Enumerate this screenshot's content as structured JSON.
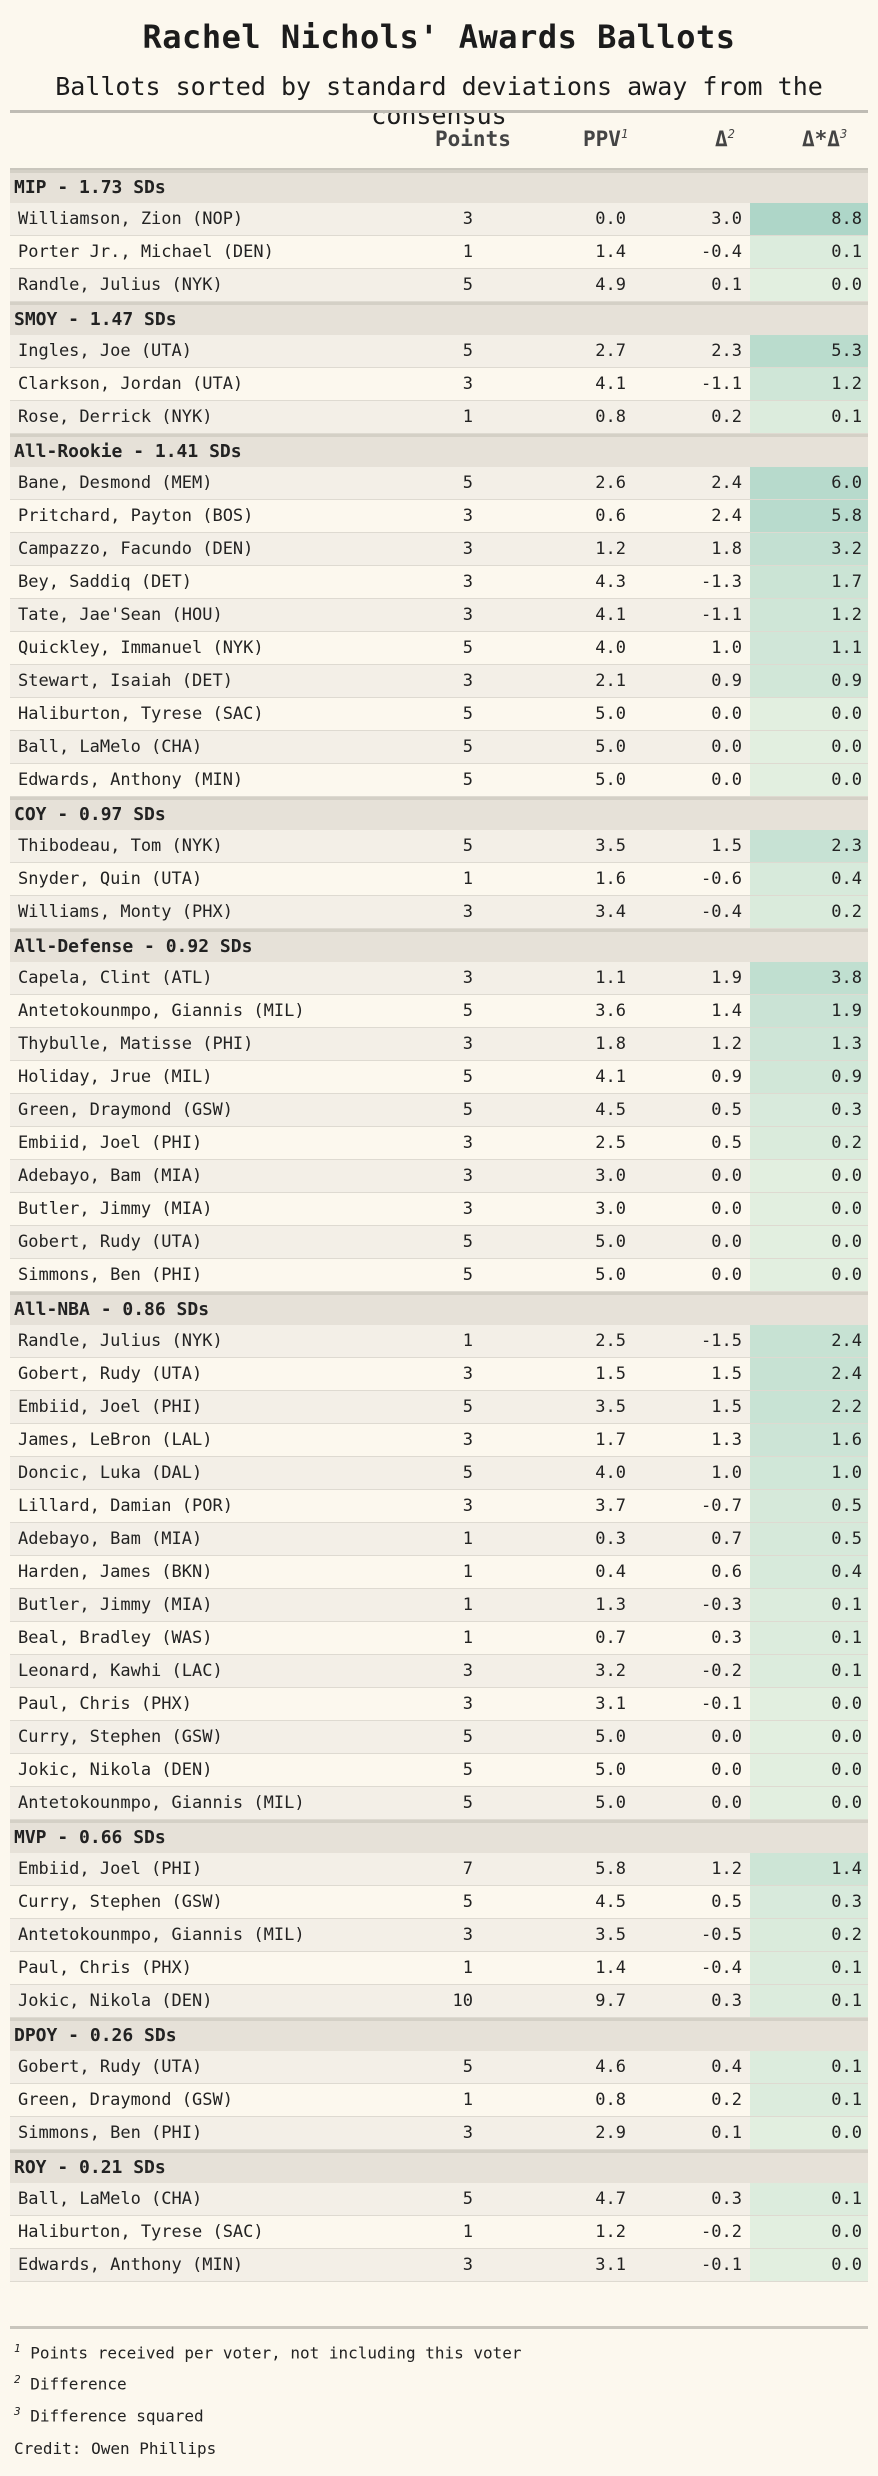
{
  "title": "Rachel Nichols' Awards Ballots",
  "subtitle": "Ballots sorted by standard deviations away from the consensus",
  "columns": {
    "points": "Points",
    "ppv": "PPV",
    "ppv_sup": "1",
    "diff": "Δ",
    "diff_sup": "2",
    "sq": "Δ*Δ",
    "sq_sup": "3"
  },
  "colors": {
    "background": "#fcf8ee",
    "group_band": "#e6e1d8",
    "heat_low": "#e2efe0",
    "heat_high": "#aed6c8"
  },
  "chart_data": {
    "type": "table",
    "groups": [
      {
        "label": "MIP - 1.73 SDs",
        "rows": [
          {
            "player": "Williamson, Zion (NOP)",
            "points": "3",
            "ppv": "0.0",
            "diff": "3.0",
            "sq": "8.8"
          },
          {
            "player": "Porter Jr., Michael (DEN)",
            "points": "1",
            "ppv": "1.4",
            "diff": "-0.4",
            "sq": "0.1"
          },
          {
            "player": "Randle, Julius (NYK)",
            "points": "5",
            "ppv": "4.9",
            "diff": "0.1",
            "sq": "0.0"
          }
        ]
      },
      {
        "label": "SMOY - 1.47 SDs",
        "rows": [
          {
            "player": "Ingles, Joe (UTA)",
            "points": "5",
            "ppv": "2.7",
            "diff": "2.3",
            "sq": "5.3"
          },
          {
            "player": "Clarkson, Jordan (UTA)",
            "points": "3",
            "ppv": "4.1",
            "diff": "-1.1",
            "sq": "1.2"
          },
          {
            "player": "Rose, Derrick (NYK)",
            "points": "1",
            "ppv": "0.8",
            "diff": "0.2",
            "sq": "0.1"
          }
        ]
      },
      {
        "label": "All-Rookie - 1.41 SDs",
        "rows": [
          {
            "player": "Bane, Desmond (MEM)",
            "points": "5",
            "ppv": "2.6",
            "diff": "2.4",
            "sq": "6.0"
          },
          {
            "player": "Pritchard, Payton (BOS)",
            "points": "3",
            "ppv": "0.6",
            "diff": "2.4",
            "sq": "5.8"
          },
          {
            "player": "Campazzo, Facundo (DEN)",
            "points": "3",
            "ppv": "1.2",
            "diff": "1.8",
            "sq": "3.2"
          },
          {
            "player": "Bey, Saddiq (DET)",
            "points": "3",
            "ppv": "4.3",
            "diff": "-1.3",
            "sq": "1.7"
          },
          {
            "player": "Tate, Jae'Sean (HOU)",
            "points": "3",
            "ppv": "4.1",
            "diff": "-1.1",
            "sq": "1.2"
          },
          {
            "player": "Quickley, Immanuel (NYK)",
            "points": "5",
            "ppv": "4.0",
            "diff": "1.0",
            "sq": "1.1"
          },
          {
            "player": "Stewart, Isaiah (DET)",
            "points": "3",
            "ppv": "2.1",
            "diff": "0.9",
            "sq": "0.9"
          },
          {
            "player": "Haliburton, Tyrese (SAC)",
            "points": "5",
            "ppv": "5.0",
            "diff": "0.0",
            "sq": "0.0"
          },
          {
            "player": "Ball, LaMelo (CHA)",
            "points": "5",
            "ppv": "5.0",
            "diff": "0.0",
            "sq": "0.0"
          },
          {
            "player": "Edwards, Anthony (MIN)",
            "points": "5",
            "ppv": "5.0",
            "diff": "0.0",
            "sq": "0.0"
          }
        ]
      },
      {
        "label": "COY - 0.97 SDs",
        "rows": [
          {
            "player": "Thibodeau, Tom (NYK)",
            "points": "5",
            "ppv": "3.5",
            "diff": "1.5",
            "sq": "2.3"
          },
          {
            "player": "Snyder, Quin (UTA)",
            "points": "1",
            "ppv": "1.6",
            "diff": "-0.6",
            "sq": "0.4"
          },
          {
            "player": "Williams, Monty (PHX)",
            "points": "3",
            "ppv": "3.4",
            "diff": "-0.4",
            "sq": "0.2"
          }
        ]
      },
      {
        "label": "All-Defense - 0.92 SDs",
        "rows": [
          {
            "player": "Capela, Clint (ATL)",
            "points": "3",
            "ppv": "1.1",
            "diff": "1.9",
            "sq": "3.8"
          },
          {
            "player": "Antetokounmpo, Giannis (MIL)",
            "points": "5",
            "ppv": "3.6",
            "diff": "1.4",
            "sq": "1.9"
          },
          {
            "player": "Thybulle, Matisse (PHI)",
            "points": "3",
            "ppv": "1.8",
            "diff": "1.2",
            "sq": "1.3"
          },
          {
            "player": "Holiday, Jrue (MIL)",
            "points": "5",
            "ppv": "4.1",
            "diff": "0.9",
            "sq": "0.9"
          },
          {
            "player": "Green, Draymond (GSW)",
            "points": "5",
            "ppv": "4.5",
            "diff": "0.5",
            "sq": "0.3"
          },
          {
            "player": "Embiid, Joel (PHI)",
            "points": "3",
            "ppv": "2.5",
            "diff": "0.5",
            "sq": "0.2"
          },
          {
            "player": "Adebayo, Bam (MIA)",
            "points": "3",
            "ppv": "3.0",
            "diff": "0.0",
            "sq": "0.0"
          },
          {
            "player": "Butler, Jimmy (MIA)",
            "points": "3",
            "ppv": "3.0",
            "diff": "0.0",
            "sq": "0.0"
          },
          {
            "player": "Gobert, Rudy (UTA)",
            "points": "5",
            "ppv": "5.0",
            "diff": "0.0",
            "sq": "0.0"
          },
          {
            "player": "Simmons, Ben (PHI)",
            "points": "5",
            "ppv": "5.0",
            "diff": "0.0",
            "sq": "0.0"
          }
        ]
      },
      {
        "label": "All-NBA - 0.86 SDs",
        "rows": [
          {
            "player": "Randle, Julius (NYK)",
            "points": "1",
            "ppv": "2.5",
            "diff": "-1.5",
            "sq": "2.4"
          },
          {
            "player": "Gobert, Rudy (UTA)",
            "points": "3",
            "ppv": "1.5",
            "diff": "1.5",
            "sq": "2.4"
          },
          {
            "player": "Embiid, Joel (PHI)",
            "points": "5",
            "ppv": "3.5",
            "diff": "1.5",
            "sq": "2.2"
          },
          {
            "player": "James, LeBron (LAL)",
            "points": "3",
            "ppv": "1.7",
            "diff": "1.3",
            "sq": "1.6"
          },
          {
            "player": "Doncic, Luka (DAL)",
            "points": "5",
            "ppv": "4.0",
            "diff": "1.0",
            "sq": "1.0"
          },
          {
            "player": "Lillard, Damian (POR)",
            "points": "3",
            "ppv": "3.7",
            "diff": "-0.7",
            "sq": "0.5"
          },
          {
            "player": "Adebayo, Bam (MIA)",
            "points": "1",
            "ppv": "0.3",
            "diff": "0.7",
            "sq": "0.5"
          },
          {
            "player": "Harden, James (BKN)",
            "points": "1",
            "ppv": "0.4",
            "diff": "0.6",
            "sq": "0.4"
          },
          {
            "player": "Butler, Jimmy (MIA)",
            "points": "1",
            "ppv": "1.3",
            "diff": "-0.3",
            "sq": "0.1"
          },
          {
            "player": "Beal, Bradley (WAS)",
            "points": "1",
            "ppv": "0.7",
            "diff": "0.3",
            "sq": "0.1"
          },
          {
            "player": "Leonard, Kawhi (LAC)",
            "points": "3",
            "ppv": "3.2",
            "diff": "-0.2",
            "sq": "0.1"
          },
          {
            "player": "Paul, Chris (PHX)",
            "points": "3",
            "ppv": "3.1",
            "diff": "-0.1",
            "sq": "0.0"
          },
          {
            "player": "Curry, Stephen (GSW)",
            "points": "5",
            "ppv": "5.0",
            "diff": "0.0",
            "sq": "0.0"
          },
          {
            "player": "Jokic, Nikola (DEN)",
            "points": "5",
            "ppv": "5.0",
            "diff": "0.0",
            "sq": "0.0"
          },
          {
            "player": "Antetokounmpo, Giannis (MIL)",
            "points": "5",
            "ppv": "5.0",
            "diff": "0.0",
            "sq": "0.0"
          }
        ]
      },
      {
        "label": "MVP - 0.66 SDs",
        "rows": [
          {
            "player": "Embiid, Joel (PHI)",
            "points": "7",
            "ppv": "5.8",
            "diff": "1.2",
            "sq": "1.4"
          },
          {
            "player": "Curry, Stephen (GSW)",
            "points": "5",
            "ppv": "4.5",
            "diff": "0.5",
            "sq": "0.3"
          },
          {
            "player": "Antetokounmpo, Giannis (MIL)",
            "points": "3",
            "ppv": "3.5",
            "diff": "-0.5",
            "sq": "0.2"
          },
          {
            "player": "Paul, Chris (PHX)",
            "points": "1",
            "ppv": "1.4",
            "diff": "-0.4",
            "sq": "0.1"
          },
          {
            "player": "Jokic, Nikola (DEN)",
            "points": "10",
            "ppv": "9.7",
            "diff": "0.3",
            "sq": "0.1"
          }
        ]
      },
      {
        "label": "DPOY - 0.26 SDs",
        "rows": [
          {
            "player": "Gobert, Rudy (UTA)",
            "points": "5",
            "ppv": "4.6",
            "diff": "0.4",
            "sq": "0.1"
          },
          {
            "player": "Green, Draymond (GSW)",
            "points": "1",
            "ppv": "0.8",
            "diff": "0.2",
            "sq": "0.1"
          },
          {
            "player": "Simmons, Ben (PHI)",
            "points": "3",
            "ppv": "2.9",
            "diff": "0.1",
            "sq": "0.0"
          }
        ]
      },
      {
        "label": "ROY - 0.21 SDs",
        "rows": [
          {
            "player": "Ball, LaMelo (CHA)",
            "points": "5",
            "ppv": "4.7",
            "diff": "0.3",
            "sq": "0.1"
          },
          {
            "player": "Haliburton, Tyrese (SAC)",
            "points": "1",
            "ppv": "1.2",
            "diff": "-0.2",
            "sq": "0.0"
          },
          {
            "player": "Edwards, Anthony (MIN)",
            "points": "3",
            "ppv": "3.1",
            "diff": "-0.1",
            "sq": "0.0"
          }
        ]
      }
    ]
  },
  "footnotes": [
    {
      "sup": "1",
      "text": " Points received per voter, not including this voter"
    },
    {
      "sup": "2",
      "text": " Difference"
    },
    {
      "sup": "3",
      "text": " Difference squared"
    }
  ],
  "credit": "Credit: Owen Phillips"
}
